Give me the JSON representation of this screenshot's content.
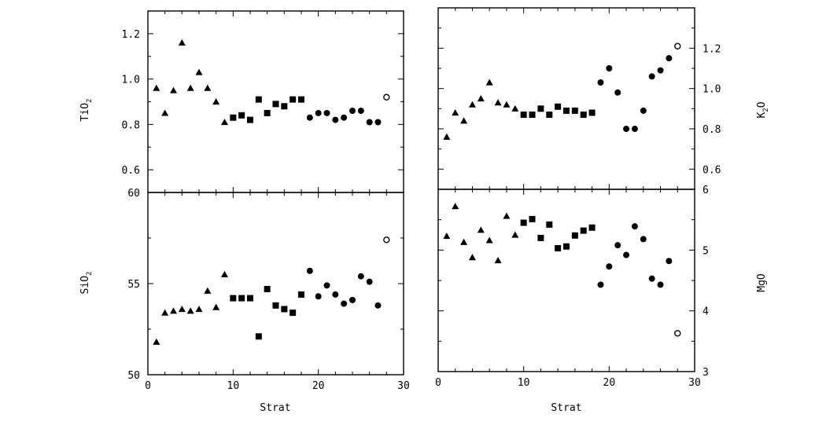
{
  "colors": {
    "ink": "#000000",
    "background": "#ffffff"
  },
  "shared_xlabel": "Strat",
  "chart_data": [
    {
      "id": "tio2",
      "type": "scatter",
      "ylabel": "TiO",
      "ylabel_sub": "2",
      "xlim": [
        0,
        30
      ],
      "ylim": [
        0.5,
        1.3
      ],
      "xticks": [],
      "yticks": [
        0.6,
        0.8,
        1.0,
        1.2
      ],
      "ytick_labels": [
        "0.6",
        "0.8",
        "1.0",
        "1.2"
      ],
      "series": [
        {
          "marker": "triangle",
          "points": [
            [
              1,
              0.96
            ],
            [
              2,
              0.85
            ],
            [
              3,
              0.95
            ],
            [
              4,
              1.16
            ],
            [
              5,
              0.96
            ],
            [
              6,
              1.03
            ],
            [
              7,
              0.96
            ],
            [
              8,
              0.9
            ],
            [
              9,
              0.81
            ]
          ]
        },
        {
          "marker": "square",
          "points": [
            [
              10,
              0.83
            ],
            [
              11,
              0.84
            ],
            [
              12,
              0.82
            ],
            [
              13,
              0.91
            ],
            [
              14,
              0.85
            ],
            [
              15,
              0.89
            ],
            [
              16,
              0.88
            ],
            [
              17,
              0.91
            ],
            [
              18,
              0.91
            ]
          ]
        },
        {
          "marker": "circle",
          "points": [
            [
              19,
              0.83
            ],
            [
              20,
              0.85
            ],
            [
              21,
              0.85
            ],
            [
              22,
              0.82
            ],
            [
              23,
              0.83
            ],
            [
              24,
              0.86
            ],
            [
              25,
              0.86
            ],
            [
              26,
              0.81
            ],
            [
              27,
              0.81
            ]
          ]
        },
        {
          "marker": "open-circle",
          "points": [
            [
              28,
              0.92
            ]
          ]
        }
      ]
    },
    {
      "id": "k2o",
      "type": "scatter",
      "ylabel": "K",
      "ylabel_sub": "2",
      "ylabel_tail": "O",
      "xlim": [
        0,
        30
      ],
      "ylim": [
        0.5,
        1.4
      ],
      "xticks": [],
      "yticks": [
        0.6,
        0.8,
        1.0,
        1.2
      ],
      "ytick_labels": [
        "0.6",
        "0.8",
        "1.0",
        "1.2"
      ],
      "series": [
        {
          "marker": "triangle",
          "points": [
            [
              1,
              0.76
            ],
            [
              2,
              0.88
            ],
            [
              3,
              0.84
            ],
            [
              4,
              0.92
            ],
            [
              5,
              0.95
            ],
            [
              6,
              1.03
            ],
            [
              7,
              0.93
            ],
            [
              8,
              0.92
            ],
            [
              9,
              0.9
            ]
          ]
        },
        {
          "marker": "square",
          "points": [
            [
              10,
              0.87
            ],
            [
              11,
              0.87
            ],
            [
              12,
              0.9
            ],
            [
              13,
              0.87
            ],
            [
              14,
              0.91
            ],
            [
              15,
              0.89
            ],
            [
              16,
              0.89
            ],
            [
              17,
              0.87
            ],
            [
              18,
              0.88
            ]
          ]
        },
        {
          "marker": "circle",
          "points": [
            [
              19,
              1.03
            ],
            [
              20,
              1.1
            ],
            [
              21,
              0.98
            ],
            [
              22,
              0.8
            ],
            [
              23,
              0.8
            ],
            [
              24,
              0.89
            ],
            [
              25,
              1.06
            ],
            [
              26,
              1.09
            ],
            [
              27,
              1.15
            ]
          ]
        },
        {
          "marker": "open-circle",
          "points": [
            [
              28,
              1.21
            ]
          ]
        }
      ]
    },
    {
      "id": "sio2",
      "type": "scatter",
      "ylabel": "SiO",
      "ylabel_sub": "2",
      "xlabel": "Strat",
      "xlim": [
        0,
        30
      ],
      "ylim": [
        50,
        60
      ],
      "xticks": [
        0,
        10,
        20,
        30
      ],
      "xtick_labels": [
        "0",
        "10",
        "20",
        "30"
      ],
      "yticks": [
        50,
        55,
        60
      ],
      "ytick_labels": [
        "50",
        "55",
        "60"
      ],
      "series": [
        {
          "marker": "triangle",
          "points": [
            [
              1,
              51.8
            ],
            [
              2,
              53.4
            ],
            [
              3,
              53.5
            ],
            [
              4,
              53.6
            ],
            [
              5,
              53.5
            ],
            [
              6,
              53.6
            ],
            [
              7,
              54.6
            ],
            [
              8,
              53.7
            ],
            [
              9,
              55.5
            ]
          ]
        },
        {
          "marker": "square",
          "points": [
            [
              10,
              54.2
            ],
            [
              11,
              54.2
            ],
            [
              12,
              54.2
            ],
            [
              13,
              52.1
            ],
            [
              14,
              54.7
            ],
            [
              15,
              53.8
            ],
            [
              16,
              53.6
            ],
            [
              17,
              53.4
            ],
            [
              18,
              54.4
            ]
          ]
        },
        {
          "marker": "circle",
          "points": [
            [
              19,
              55.7
            ],
            [
              20,
              54.3
            ],
            [
              21,
              54.9
            ],
            [
              22,
              54.4
            ],
            [
              23,
              53.9
            ],
            [
              24,
              54.1
            ],
            [
              25,
              55.4
            ],
            [
              26,
              55.1
            ],
            [
              27,
              53.8
            ]
          ]
        },
        {
          "marker": "open-circle",
          "points": [
            [
              28,
              57.4
            ]
          ]
        }
      ]
    },
    {
      "id": "mgo",
      "type": "scatter",
      "ylabel": "MgO",
      "xlabel": "Strat",
      "xlim": [
        0,
        30
      ],
      "ylim": [
        3,
        6
      ],
      "xticks": [
        0,
        10,
        20,
        30
      ],
      "xtick_labels": [
        "0",
        "10",
        "20",
        "30"
      ],
      "yticks": [
        3,
        4,
        5,
        6
      ],
      "ytick_labels": [
        "3",
        "4",
        "5",
        "6"
      ],
      "series": [
        {
          "marker": "triangle",
          "points": [
            [
              1,
              5.23
            ],
            [
              2,
              5.72
            ],
            [
              3,
              5.13
            ],
            [
              4,
              4.88
            ],
            [
              5,
              5.33
            ],
            [
              6,
              5.16
            ],
            [
              7,
              4.83
            ],
            [
              8,
              5.56
            ],
            [
              9,
              5.25
            ]
          ]
        },
        {
          "marker": "square",
          "points": [
            [
              10,
              5.45
            ],
            [
              11,
              5.51
            ],
            [
              12,
              5.2
            ],
            [
              13,
              5.42
            ],
            [
              14,
              5.03
            ],
            [
              15,
              5.06
            ],
            [
              16,
              5.24
            ],
            [
              17,
              5.32
            ],
            [
              18,
              5.37
            ]
          ]
        },
        {
          "marker": "circle",
          "points": [
            [
              19,
              4.43
            ],
            [
              20,
              4.73
            ],
            [
              21,
              5.08
            ],
            [
              22,
              4.92
            ],
            [
              23,
              5.39
            ],
            [
              24,
              5.18
            ],
            [
              25,
              4.53
            ],
            [
              26,
              4.43
            ],
            [
              27,
              4.82
            ]
          ]
        },
        {
          "marker": "open-circle",
          "points": [
            [
              28,
              3.63
            ]
          ]
        }
      ]
    }
  ]
}
